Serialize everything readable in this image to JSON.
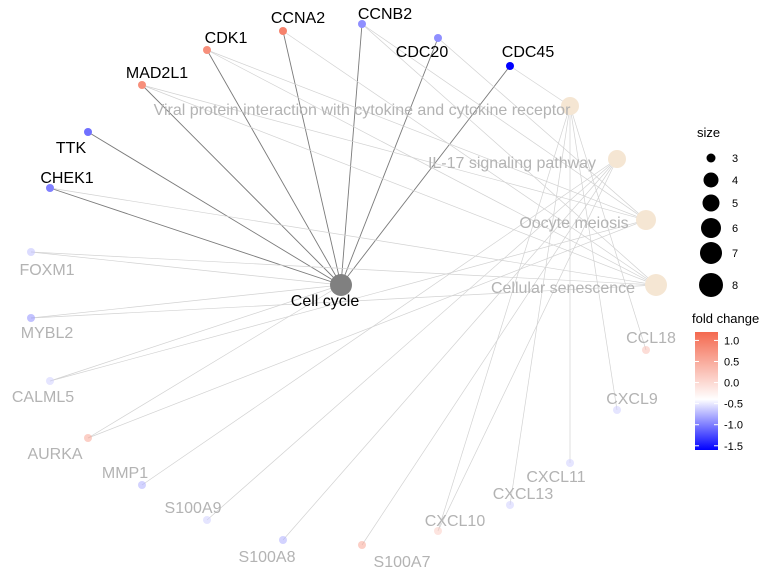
{
  "hub": {
    "label": "Cell cycle",
    "color": "#808080"
  },
  "pathways": [
    {
      "id": "viral",
      "label": "Viral protein interaction with cytokine and cytokine receptor"
    },
    {
      "id": "il17",
      "label": "IL-17 signaling pathway"
    },
    {
      "id": "oocyte",
      "label": "Oocyte meiosis"
    },
    {
      "id": "senescence",
      "label": "Cellular senescence"
    }
  ],
  "pathway_color": "#f5e6d3",
  "genes": [
    {
      "label": "CDK1",
      "fc": 0.9,
      "active": true
    },
    {
      "label": "CCNA2",
      "fc": 1.0,
      "active": true
    },
    {
      "label": "CCNB2",
      "fc": -0.7,
      "active": true
    },
    {
      "label": "CDC20",
      "fc": -0.7,
      "active": true
    },
    {
      "label": "CDC45",
      "fc": -1.6,
      "active": true
    },
    {
      "label": "MAD2L1",
      "fc": 0.9,
      "active": true
    },
    {
      "label": "TTK",
      "fc": -0.9,
      "active": true
    },
    {
      "label": "CHEK1",
      "fc": -0.8,
      "active": true
    },
    {
      "label": "FOXM1",
      "fc": -0.4,
      "active": false
    },
    {
      "label": "MYBL2",
      "fc": -0.7,
      "active": false
    },
    {
      "label": "CALML5",
      "fc": -0.3,
      "active": false
    },
    {
      "label": "AURKA",
      "fc": 0.7,
      "active": false
    },
    {
      "label": "MMP1",
      "fc": -0.5,
      "active": false
    },
    {
      "label": "S100A9",
      "fc": -0.3,
      "active": false
    },
    {
      "label": "S100A8",
      "fc": -0.5,
      "active": false
    },
    {
      "label": "S100A7",
      "fc": 0.7,
      "active": false
    },
    {
      "label": "CXCL10",
      "fc": 0.4,
      "active": false
    },
    {
      "label": "CXCL13",
      "fc": -0.3,
      "active": false
    },
    {
      "label": "CXCL11",
      "fc": -0.3,
      "active": false
    },
    {
      "label": "CXCL9",
      "fc": -0.3,
      "active": false
    },
    {
      "label": "CCL18",
      "fc": 0.5,
      "active": false
    }
  ],
  "edges": [
    [
      "CDK1",
      "Cell cycle"
    ],
    [
      "CCNA2",
      "Cell cycle"
    ],
    [
      "CCNB2",
      "Cell cycle"
    ],
    [
      "CDC20",
      "Cell cycle"
    ],
    [
      "CDC45",
      "Cell cycle"
    ],
    [
      "MAD2L1",
      "Cell cycle"
    ],
    [
      "TTK",
      "Cell cycle"
    ],
    [
      "CHEK1",
      "Cell cycle"
    ],
    [
      "FOXM1",
      "Cell cycle"
    ],
    [
      "MYBL2",
      "Cell cycle"
    ],
    [
      "CALML5",
      "Cell cycle"
    ],
    [
      "AURKA",
      "Cell cycle"
    ],
    [
      "CDK1",
      "Oocyte meiosis"
    ],
    [
      "CDK1",
      "Cellular senescence"
    ],
    [
      "CCNA2",
      "Cellular senescence"
    ],
    [
      "CCNB2",
      "Oocyte meiosis"
    ],
    [
      "CCNB2",
      "Cellular senescence"
    ],
    [
      "CDC20",
      "Oocyte meiosis"
    ],
    [
      "MAD2L1",
      "Oocyte meiosis"
    ],
    [
      "MAD2L1",
      "Cellular senescence"
    ],
    [
      "CHEK1",
      "Cellular senescence"
    ],
    [
      "FOXM1",
      "Cellular senescence"
    ],
    [
      "MYBL2",
      "Cellular senescence"
    ],
    [
      "CALML5",
      "Oocyte meiosis"
    ],
    [
      "AURKA",
      "Oocyte meiosis"
    ],
    [
      "CDC45",
      "Viral protein interaction with cytokine and cytokine receptor"
    ],
    [
      "MMP1",
      "IL-17 signaling pathway"
    ],
    [
      "S100A9",
      "IL-17 signaling pathway"
    ],
    [
      "S100A8",
      "IL-17 signaling pathway"
    ],
    [
      "S100A7",
      "IL-17 signaling pathway"
    ],
    [
      "CXCL10",
      "IL-17 signaling pathway"
    ],
    [
      "CXCL10",
      "Viral protein interaction with cytokine and cytokine receptor"
    ],
    [
      "CXCL13",
      "Viral protein interaction with cytokine and cytokine receptor"
    ],
    [
      "CXCL11",
      "Viral protein interaction with cytokine and cytokine receptor"
    ],
    [
      "CXCL9",
      "Viral protein interaction with cytokine and cytokine receptor"
    ],
    [
      "CCL18",
      "Viral protein interaction with cytokine and cytokine receptor"
    ]
  ],
  "legend": {
    "size_title": "size",
    "size_values": [
      "3",
      "4",
      "5",
      "6",
      "7",
      "8"
    ],
    "color_title": "fold change",
    "color_ticks": [
      "1.0",
      "0.5",
      "0.0",
      "-0.5",
      "-1.0",
      "-1.5"
    ],
    "color_domain": [
      -1.6,
      1.2
    ],
    "color_high": "#f4694f",
    "color_mid": "#ffffff",
    "color_low": "#0000ff"
  }
}
